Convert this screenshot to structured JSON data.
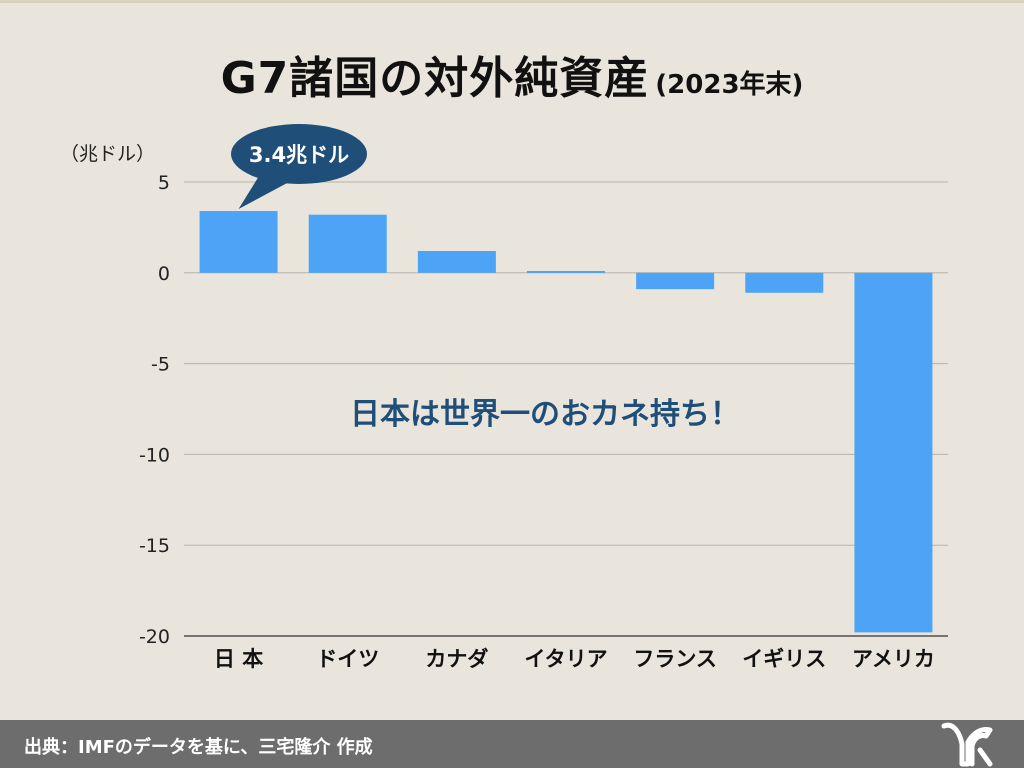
{
  "title": "G7諸国の対外純資産",
  "title_suffix": "(2023年末)",
  "footer": {
    "source": "出典：IMFのデータを基に、三宅隆介 作成"
  },
  "colors": {
    "background": "#e9e5dc",
    "bar": "#4da3f5",
    "callout": "#1f4e79",
    "footer": "#6d6d6d"
  },
  "chart_data": {
    "type": "bar",
    "ylabel": "（兆ドル）",
    "categories": [
      "日 本",
      "ドイツ",
      "カナダ",
      "イタリア",
      "フランス",
      "イギリス",
      "アメリカ"
    ],
    "values": [
      3.4,
      3.2,
      1.2,
      0.1,
      -0.9,
      -1.1,
      -19.8
    ],
    "ylim": [
      -20,
      5
    ],
    "yticks": [
      5,
      0,
      -5,
      -10,
      -15,
      -20
    ],
    "grid": true,
    "annotations": [
      {
        "text": "3.4兆ドル",
        "category": "日 本",
        "style": "callout"
      },
      {
        "text": "日本は世界一のおカネ持ち！",
        "style": "text"
      }
    ]
  }
}
